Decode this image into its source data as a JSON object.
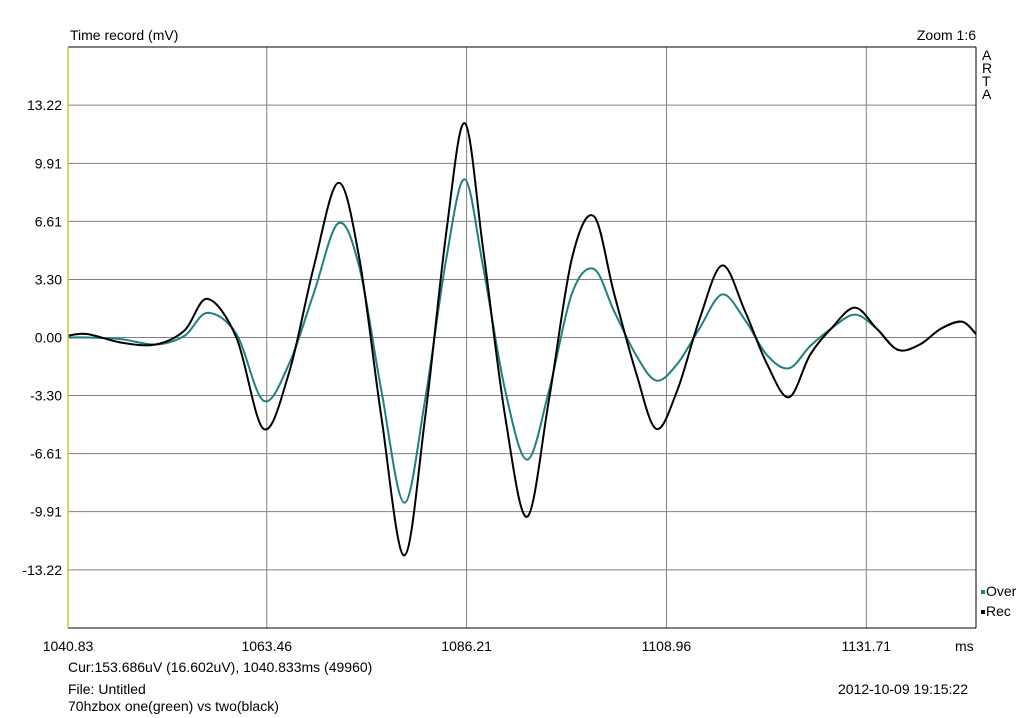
{
  "header": {
    "title": "Time record (mV)",
    "zoom": "Zoom 1:6",
    "brand_letters": [
      "A",
      "R",
      "T",
      "A"
    ]
  },
  "chart_data": {
    "type": "line",
    "title": "Time record (mV)",
    "xlabel": "ms",
    "ylabel": "mV",
    "xlim": [
      1040.833,
      1144.2
    ],
    "ylim": [
      -16.53,
      16.53
    ],
    "x_ticks": [
      "1040.83",
      "1063.46",
      "1086.21",
      "1108.96",
      "1131.71"
    ],
    "x_tick_values": [
      1040.833,
      1063.46,
      1086.21,
      1108.96,
      1131.71
    ],
    "y_ticks": [
      "13.22",
      "9.91",
      "6.61",
      "3.30",
      "0.00",
      "-3.30",
      "-6.61",
      "-9.91",
      "-13.22"
    ],
    "y_tick_values": [
      13.22,
      9.91,
      6.61,
      3.3,
      0.0,
      -3.3,
      -6.61,
      -9.91,
      -13.22
    ],
    "grid": true,
    "legend_position": "bottom-right",
    "background": "#ffffff",
    "grid_color": "#808080",
    "series": [
      {
        "name": "Over",
        "color": "#1f8080",
        "x": [
          1040.83,
          1043.0,
          1047.0,
          1050.8,
          1054.1,
          1056.7,
          1060.0,
          1063.1,
          1066.0,
          1068.8,
          1071.6,
          1074.0,
          1076.5,
          1079.1,
          1081.5,
          1083.9,
          1086.0,
          1088.1,
          1090.6,
          1093.1,
          1095.6,
          1098.2,
          1100.7,
          1103.0,
          1105.5,
          1107.8,
          1110.2,
          1112.7,
          1115.3,
          1117.9,
          1120.4,
          1122.9,
          1125.3,
          1127.7,
          1130.4,
          1132.9,
          1135.3,
          1137.8,
          1140.2,
          1142.6,
          1144.2
        ],
        "values": [
          0.0,
          0.0,
          -0.1,
          -0.4,
          0.1,
          1.4,
          0.2,
          -3.6,
          -1.5,
          2.5,
          6.5,
          4.0,
          -3.0,
          -9.4,
          -3.5,
          4.5,
          9.0,
          4.0,
          -3.0,
          -6.95,
          -3.0,
          2.5,
          3.9,
          1.5,
          -1.0,
          -2.45,
          -1.5,
          0.5,
          2.45,
          1.0,
          -1.0,
          -1.75,
          -0.5,
          0.5,
          1.3,
          0.5,
          -0.7,
          -0.4,
          0.5,
          0.9,
          0.2
        ]
      },
      {
        "name": "Rec",
        "color": "#000000",
        "x": [
          1040.83,
          1043.0,
          1047.0,
          1050.8,
          1054.1,
          1056.7,
          1060.0,
          1063.1,
          1066.0,
          1068.8,
          1071.6,
          1074.0,
          1076.5,
          1079.1,
          1081.5,
          1083.9,
          1086.0,
          1088.1,
          1090.6,
          1093.1,
          1095.6,
          1098.2,
          1100.7,
          1103.0,
          1105.5,
          1107.8,
          1110.2,
          1112.7,
          1115.3,
          1117.9,
          1120.4,
          1122.9,
          1125.3,
          1127.7,
          1130.4,
          1132.9,
          1135.3,
          1137.8,
          1140.2,
          1142.6,
          1144.2
        ],
        "values": [
          0.1,
          0.2,
          -0.3,
          -0.4,
          0.4,
          2.2,
          0.0,
          -5.2,
          -2.0,
          4.0,
          8.8,
          4.5,
          -4.5,
          -12.4,
          -4.5,
          6.0,
          12.2,
          5.0,
          -4.5,
          -10.2,
          -3.5,
          4.5,
          6.9,
          2.5,
          -2.0,
          -5.2,
          -3.0,
          1.0,
          4.1,
          1.5,
          -1.5,
          -3.4,
          -1.0,
          0.5,
          1.7,
          0.5,
          -0.7,
          -0.4,
          0.5,
          0.9,
          0.2
        ]
      }
    ]
  },
  "footer": {
    "cursor": "Cur:153.686uV (16.602uV), 1040.833ms (49960)",
    "file": "File: Untitled",
    "description": "70hzbox one(green) vs two(black)",
    "timestamp": "2012-10-09  19:15:22"
  }
}
